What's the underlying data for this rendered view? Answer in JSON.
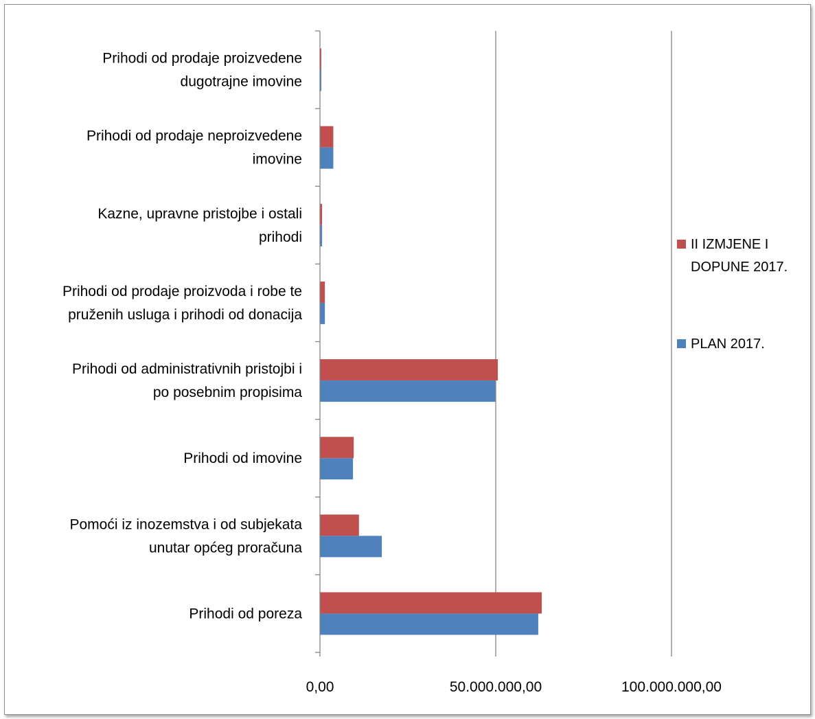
{
  "chart_data": {
    "type": "bar",
    "orientation": "horizontal",
    "categories": [
      "Prihodi od poreza",
      "Pomoći iz inozemstva i od subjekata unutar općeg proračuna",
      "Prihodi od imovine",
      "Prihodi od administrativnih pristojbi i po posebnim propisima",
      "Prihodi od prodaje proizvoda i robe te pruženih usluga i prihodi od donacija",
      "Kazne, upravne pristojbe i ostali prihodi",
      "Prihodi od prodaje neproizvedene imovine",
      "Prihodi od prodaje proizvedene dugotrajne imovine"
    ],
    "category_lines": [
      [
        "Prihodi od poreza"
      ],
      [
        "Pomoći iz inozemstva i od subjekata",
        "unutar općeg proračuna"
      ],
      [
        "Prihodi od imovine"
      ],
      [
        "Prihodi od administrativnih pristojbi i",
        "po posebnim propisima"
      ],
      [
        "Prihodi od prodaje proizvoda i robe te",
        "pruženih usluga i prihodi od donacija"
      ],
      [
        "Kazne, upravne pristojbe i ostali",
        "prihodi"
      ],
      [
        "Prihodi od prodaje neproizvedene",
        "imovine"
      ],
      [
        "Prihodi od prodaje proizvedene",
        "dugotrajne imovine"
      ]
    ],
    "series": [
      {
        "name": "PLAN 2017.",
        "color": "#4f81bd",
        "values": [
          62000000,
          17500000,
          9300000,
          49800000,
          1300000,
          500000,
          3700000,
          200000
        ]
      },
      {
        "name": "II IZMJENE I DOPUNE 2017.",
        "color": "#c0504d",
        "values": [
          63000000,
          11000000,
          9500000,
          50500000,
          1300000,
          500000,
          3700000,
          200000
        ]
      }
    ],
    "legend_lines": [
      [
        "II IZMJENE I",
        "DOPUNE 2017."
      ],
      [
        "PLAN 2017."
      ]
    ],
    "legend_order": [
      1,
      0
    ],
    "legend_position": "right",
    "xlim": [
      0,
      100000000
    ],
    "xticks": [
      0,
      50000000,
      100000000
    ],
    "xtick_labels": [
      "0,00",
      "50.000.000,00",
      "100.000.000,00"
    ],
    "grid": "vertical major gridlines",
    "title": "",
    "xlabel": "",
    "ylabel": ""
  }
}
